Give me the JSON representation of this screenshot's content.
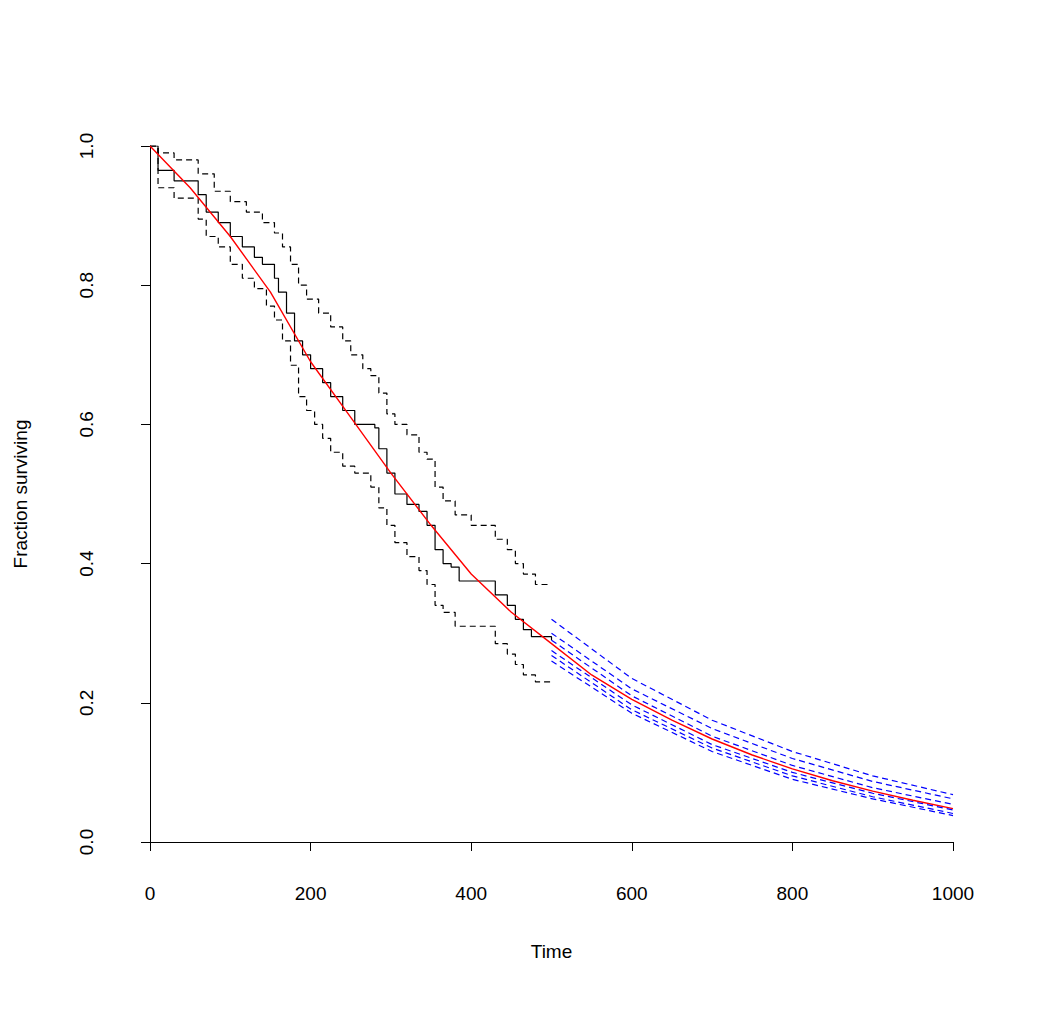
{
  "chart_data": {
    "type": "line",
    "x_label": "Time",
    "y_label": "Fraction surviving",
    "xlim": [
      0,
      1000
    ],
    "xticks": [
      0,
      200,
      400,
      600,
      800,
      1000
    ],
    "ylim": [
      0,
      1
    ],
    "yticks": [
      {
        "value": 0,
        "label": "0.0"
      },
      0.2,
      0.4,
      0.6,
      0.8,
      {
        "value": 1,
        "label": "1.0"
      }
    ],
    "grid": false,
    "series": [
      {
        "type": "step",
        "color": "#000000",
        "line_style": "solid",
        "x": [
          0,
          10,
          30,
          60,
          70,
          85,
          100,
          115,
          130,
          140,
          155,
          160,
          170,
          180,
          190,
          200,
          215,
          225,
          240,
          255,
          280,
          285,
          295,
          305,
          320,
          335,
          345,
          355,
          365,
          375,
          385,
          430,
          445,
          455,
          465,
          475,
          500
        ],
        "values": [
          1.0,
          0.965,
          0.95,
          0.93,
          0.905,
          0.89,
          0.87,
          0.855,
          0.84,
          0.83,
          0.81,
          0.79,
          0.76,
          0.72,
          0.7,
          0.68,
          0.66,
          0.64,
          0.62,
          0.6,
          0.595,
          0.565,
          0.53,
          0.5,
          0.485,
          0.475,
          0.455,
          0.42,
          0.4,
          0.395,
          0.375,
          0.355,
          0.34,
          0.32,
          0.305,
          0.295,
          0.29
        ]
      },
      {
        "type": "step",
        "color": "#000000",
        "line_style": "dashed",
        "x": [
          0,
          10,
          30,
          60,
          80,
          100,
          120,
          140,
          155,
          165,
          175,
          185,
          195,
          210,
          225,
          240,
          250,
          265,
          275,
          285,
          295,
          305,
          320,
          335,
          345,
          355,
          365,
          380,
          400,
          430,
          445,
          455,
          465,
          480,
          500
        ],
        "values": [
          1.0,
          0.99,
          0.98,
          0.96,
          0.935,
          0.92,
          0.905,
          0.89,
          0.875,
          0.855,
          0.83,
          0.8,
          0.78,
          0.76,
          0.74,
          0.72,
          0.7,
          0.68,
          0.67,
          0.645,
          0.615,
          0.6,
          0.585,
          0.56,
          0.55,
          0.51,
          0.49,
          0.47,
          0.455,
          0.435,
          0.42,
          0.4,
          0.385,
          0.37,
          0.37
        ]
      },
      {
        "type": "step",
        "color": "#000000",
        "line_style": "dashed",
        "x": [
          0,
          10,
          30,
          60,
          70,
          85,
          100,
          115,
          130,
          145,
          155,
          165,
          175,
          185,
          195,
          205,
          215,
          225,
          240,
          255,
          275,
          285,
          295,
          305,
          320,
          335,
          345,
          355,
          365,
          380,
          430,
          445,
          455,
          465,
          480,
          500
        ],
        "values": [
          1.0,
          0.94,
          0.925,
          0.895,
          0.87,
          0.855,
          0.83,
          0.81,
          0.795,
          0.77,
          0.75,
          0.72,
          0.685,
          0.64,
          0.62,
          0.6,
          0.58,
          0.56,
          0.54,
          0.53,
          0.51,
          0.48,
          0.455,
          0.43,
          0.41,
          0.39,
          0.37,
          0.34,
          0.33,
          0.31,
          0.285,
          0.27,
          0.255,
          0.24,
          0.23,
          0.23
        ]
      },
      {
        "type": "line",
        "color": "#ff0000",
        "line_style": "solid",
        "x": [
          0,
          50,
          100,
          150,
          200,
          250,
          300,
          350,
          400,
          450,
          500,
          550,
          600,
          650,
          700,
          750,
          800,
          850,
          900,
          950,
          1000
        ],
        "values": [
          1.0,
          0.94,
          0.87,
          0.79,
          0.69,
          0.61,
          0.53,
          0.455,
          0.385,
          0.33,
          0.285,
          0.24,
          0.205,
          0.175,
          0.148,
          0.125,
          0.105,
          0.088,
          0.073,
          0.06,
          0.048
        ]
      },
      {
        "type": "line",
        "color": "#0000ff",
        "line_style": "dashed",
        "x": [
          500,
          600,
          700,
          800,
          900,
          1000
        ],
        "values": [
          0.32,
          0.235,
          0.175,
          0.13,
          0.095,
          0.068
        ]
      },
      {
        "type": "line",
        "color": "#0000ff",
        "line_style": "dashed",
        "x": [
          500,
          600,
          700,
          800,
          900,
          1000
        ],
        "values": [
          0.3,
          0.22,
          0.163,
          0.12,
          0.087,
          0.062
        ]
      },
      {
        "type": "line",
        "color": "#0000ff",
        "line_style": "dashed",
        "x": [
          500,
          600,
          700,
          800,
          900,
          1000
        ],
        "values": [
          0.29,
          0.21,
          0.152,
          0.11,
          0.078,
          0.054
        ]
      },
      {
        "type": "line",
        "color": "#0000ff",
        "line_style": "dashed",
        "x": [
          500,
          600,
          700,
          800,
          900,
          1000
        ],
        "values": [
          0.275,
          0.197,
          0.14,
          0.1,
          0.07,
          0.046
        ]
      },
      {
        "type": "line",
        "color": "#0000ff",
        "line_style": "dashed",
        "x": [
          500,
          600,
          700,
          800,
          900,
          1000
        ],
        "values": [
          0.268,
          0.19,
          0.135,
          0.095,
          0.065,
          0.041
        ]
      },
      {
        "type": "line",
        "color": "#0000ff",
        "line_style": "dashed",
        "x": [
          500,
          600,
          700,
          800,
          900,
          1000
        ],
        "values": [
          0.26,
          0.185,
          0.13,
          0.09,
          0.062,
          0.038
        ]
      }
    ]
  }
}
